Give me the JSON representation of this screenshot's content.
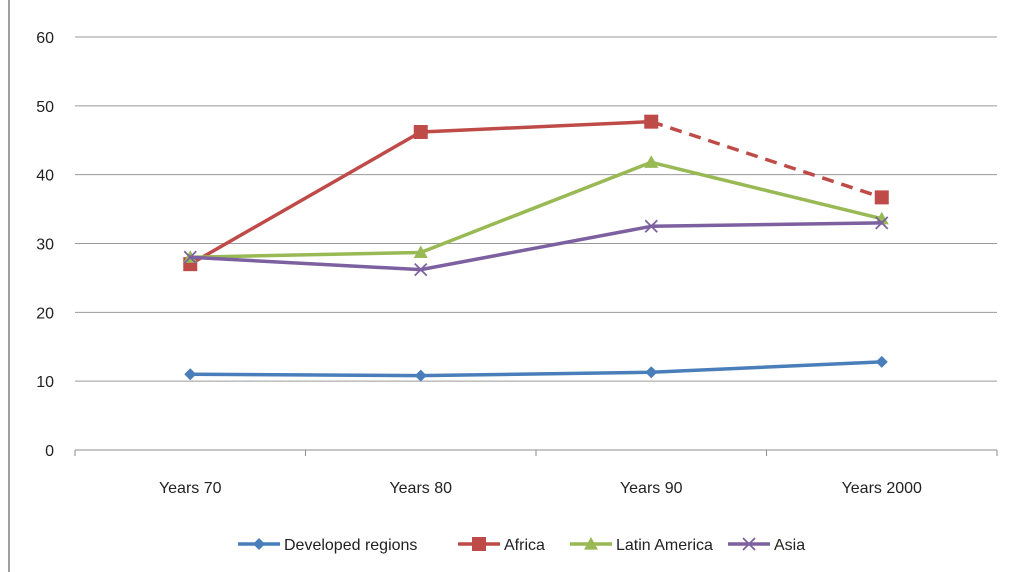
{
  "chart_data": {
    "type": "line",
    "categories": [
      "Years 70",
      "Years 80",
      "Years 90",
      "Years 2000"
    ],
    "ylim": [
      0,
      60
    ],
    "yticks": [
      0,
      10,
      20,
      30,
      40,
      50,
      60
    ],
    "grid": true,
    "legend": "bottom",
    "series": [
      {
        "name": "Developed regions",
        "values": [
          11,
          10.8,
          11.3,
          12.8
        ],
        "color": "#4a7ebb",
        "marker": "diamond",
        "dashed_last_segment": false
      },
      {
        "name": "Africa",
        "values": [
          27,
          46.2,
          47.7,
          36.7
        ],
        "color": "#be4b48",
        "marker": "square",
        "dashed_last_segment": true
      },
      {
        "name": "Latin America",
        "values": [
          28,
          28.7,
          41.8,
          33.6
        ],
        "color": "#98b954",
        "marker": "triangle",
        "dashed_last_segment": false
      },
      {
        "name": "Asia",
        "values": [
          28,
          26.2,
          32.5,
          33
        ],
        "color": "#7d60a0",
        "marker": "x",
        "dashed_last_segment": false
      }
    ]
  }
}
